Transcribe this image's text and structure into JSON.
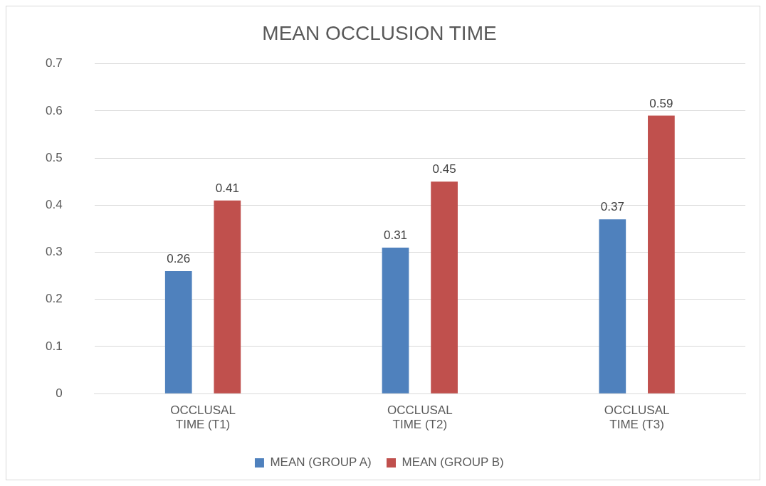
{
  "chart_data": {
    "type": "bar",
    "title": "MEAN OCCLUSION TIME",
    "categories": [
      "OCCLUSAL TIME (T1)",
      "OCCLUSAL TIME (T2)",
      "OCCLUSAL TIME (T3)"
    ],
    "series": [
      {
        "name": "MEAN (GROUP A)",
        "color": "#4f81bd",
        "values": [
          0.26,
          0.31,
          0.37
        ]
      },
      {
        "name": "MEAN (GROUP B)",
        "color": "#c0504d",
        "values": [
          0.41,
          0.45,
          0.59
        ]
      }
    ],
    "ylim": [
      0,
      0.7
    ],
    "yticks": [
      0,
      0.1,
      0.2,
      0.3,
      0.4,
      0.5,
      0.6,
      0.7
    ],
    "grid": "y",
    "legend": "bottom",
    "data_labels": true
  }
}
